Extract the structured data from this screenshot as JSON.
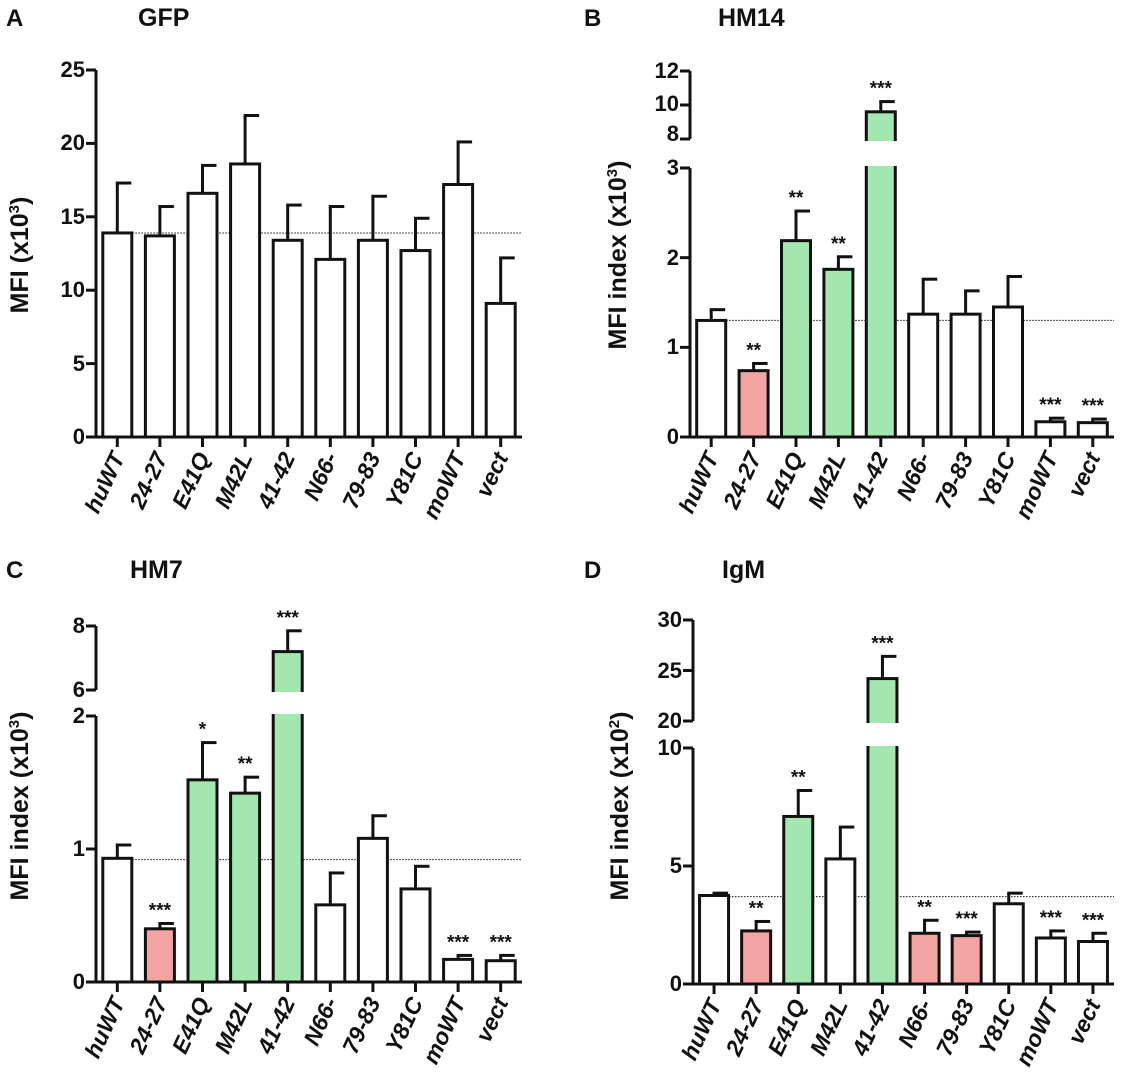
{
  "colors": {
    "plain": "#ffffff",
    "decrease": "#f4a3a3",
    "increase": "#a3e6b0",
    "stroke": "#111111"
  },
  "chart_data": [
    {
      "panel": "A",
      "type": "bar",
      "title": "GFP",
      "ylabel": "MFI (x10",
      "ylabel_sup": "3",
      "ylabel_close": ")",
      "categories": [
        "huWT",
        "24-27",
        "E41Q",
        "M42L",
        "41-42",
        "N66-",
        "79-83",
        "Y81C",
        "moWT",
        "vect"
      ],
      "values": [
        13.9,
        13.7,
        16.6,
        18.6,
        13.4,
        12.1,
        13.4,
        12.7,
        17.2,
        9.1
      ],
      "errors": [
        3.4,
        2.0,
        1.9,
        3.3,
        2.4,
        3.6,
        3.0,
        2.2,
        2.9,
        3.1
      ],
      "colors": [
        "plain",
        "plain",
        "plain",
        "plain",
        "plain",
        "plain",
        "plain",
        "plain",
        "plain",
        "plain"
      ],
      "significance": [
        "",
        "",
        "",
        "",
        "",
        "",
        "",
        "",
        "",
        ""
      ],
      "reference_line": 13.9,
      "ylim": [
        0,
        25
      ],
      "yticks": [
        "0",
        "5",
        "10",
        "15",
        "20",
        "25"
      ]
    },
    {
      "panel": "B",
      "type": "bar",
      "title": "HM14",
      "ylabel": "MFI index (x10",
      "ylabel_sup": "3",
      "ylabel_close": ")",
      "categories": [
        "huWT",
        "24-27",
        "E41Q",
        "M42L",
        "41-42",
        "N66-",
        "79-83",
        "Y81C",
        "moWT",
        "vect"
      ],
      "values": [
        1.3,
        0.74,
        2.19,
        1.87,
        9.6,
        1.37,
        1.37,
        1.45,
        0.17,
        0.16
      ],
      "errors": [
        0.12,
        0.08,
        0.33,
        0.14,
        0.6,
        0.39,
        0.26,
        0.34,
        0.04,
        0.04
      ],
      "colors": [
        "plain",
        "decrease",
        "increase",
        "increase",
        "increase",
        "plain",
        "plain",
        "plain",
        "plain",
        "plain"
      ],
      "significance": [
        "",
        "**",
        "**",
        "**",
        "***",
        "",
        "",
        "",
        "***",
        "***"
      ],
      "reference_line": 1.3,
      "ylim": [
        0,
        12
      ],
      "axis_break": [
        3,
        8
      ],
      "yticks": [
        "0",
        "1",
        "2",
        "3",
        "8",
        "10",
        "12"
      ]
    },
    {
      "panel": "C",
      "type": "bar",
      "title": "HM7",
      "ylabel": "MFI index (x10",
      "ylabel_sup": "3",
      "ylabel_close": ")",
      "categories": [
        "huWT",
        "24-27",
        "E41Q",
        "M42L",
        "41-42",
        "N66-",
        "79-83",
        "Y81C",
        "moWT",
        "vect"
      ],
      "values": [
        0.93,
        0.4,
        1.52,
        1.42,
        7.2,
        0.58,
        1.08,
        0.7,
        0.17,
        0.16
      ],
      "errors": [
        0.1,
        0.04,
        0.28,
        0.12,
        0.65,
        0.24,
        0.17,
        0.17,
        0.03,
        0.04
      ],
      "colors": [
        "plain",
        "decrease",
        "increase",
        "increase",
        "increase",
        "plain",
        "plain",
        "plain",
        "plain",
        "plain"
      ],
      "significance": [
        "",
        "***",
        "*",
        "**",
        "***",
        "",
        "",
        "",
        "***",
        "***"
      ],
      "reference_line": 0.92,
      "ylim": [
        0,
        8
      ],
      "axis_break": [
        2,
        6
      ],
      "yticks": [
        "0",
        "1",
        "2",
        "6",
        "8"
      ]
    },
    {
      "panel": "D",
      "type": "bar",
      "title": "IgM",
      "ylabel": "MFI index (x10",
      "ylabel_sup": "2",
      "ylabel_close": ")",
      "categories": [
        "huWT",
        "24-27",
        "E41Q",
        "M42L",
        "41-42",
        "N66-",
        "79-83",
        "Y81C",
        "moWT",
        "vect"
      ],
      "values": [
        3.75,
        2.25,
        7.1,
        5.3,
        24.2,
        2.15,
        2.05,
        3.4,
        1.95,
        1.8
      ],
      "errors": [
        0.1,
        0.4,
        1.1,
        1.35,
        2.2,
        0.55,
        0.15,
        0.45,
        0.3,
        0.35
      ],
      "colors": [
        "plain",
        "decrease",
        "increase",
        "plain",
        "increase",
        "decrease",
        "decrease",
        "plain",
        "plain",
        "plain"
      ],
      "significance": [
        "",
        "**",
        "**",
        "",
        "***",
        "**",
        "***",
        "",
        "***",
        "***"
      ],
      "reference_line": 3.7,
      "ylim": [
        0,
        30
      ],
      "axis_break": [
        10,
        20
      ],
      "yticks": [
        "0",
        "5",
        "10",
        "20",
        "25",
        "30"
      ]
    }
  ]
}
